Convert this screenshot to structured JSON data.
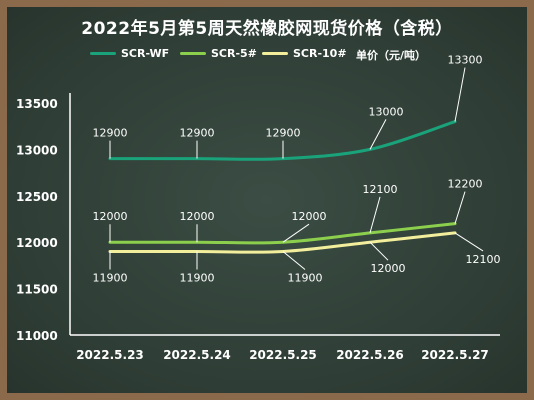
{
  "title": "2022年5月第5周天然橡胶网现货价格（含税）",
  "unit_label": "单价（元/吨）",
  "chart_data": {
    "type": "line",
    "categories": [
      "2022.5.23",
      "2022.5.24",
      "2022.5.25",
      "2022.5.26",
      "2022.5.27"
    ],
    "ylim": [
      11000,
      13500
    ],
    "yticks": [
      11000,
      11500,
      12000,
      12500,
      13000,
      13500
    ],
    "grid": false,
    "legend": "top",
    "series": [
      {
        "name": "SCR-WF",
        "color": "#1aa37a",
        "values": [
          12900,
          12900,
          12900,
          13000,
          13300
        ],
        "labels": [
          "12900",
          "12900",
          "12900",
          "13000",
          "13300"
        ]
      },
      {
        "name": "SCR-5#",
        "color": "#8ccf4d",
        "values": [
          12000,
          12000,
          12000,
          12100,
          12200
        ],
        "labels": [
          "12000",
          "12000",
          "12000",
          "12100",
          "12200"
        ]
      },
      {
        "name": "SCR-10#",
        "color": "#f2ee9c",
        "values": [
          11900,
          11900,
          11900,
          12000,
          12100
        ],
        "labels": [
          "11900",
          "11900",
          "11900",
          "12000",
          "12100"
        ]
      }
    ]
  }
}
